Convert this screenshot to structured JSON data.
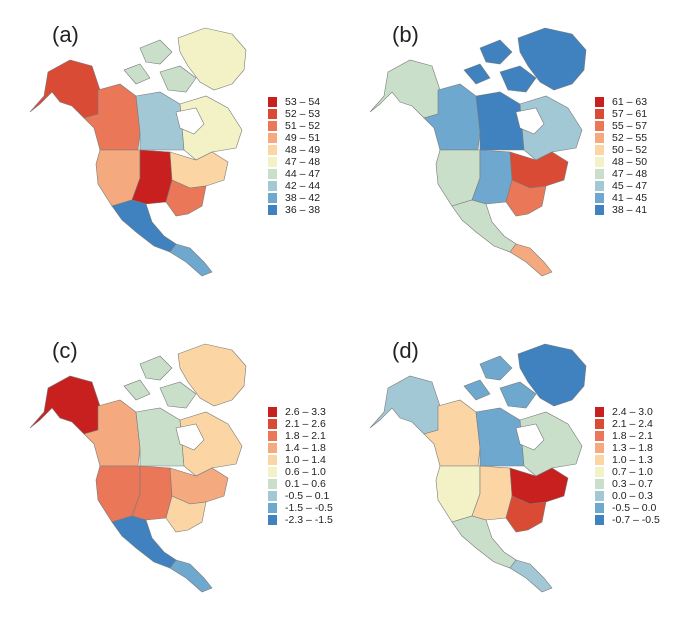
{
  "panels": [
    {
      "label": "(a)",
      "legend": [
        {
          "range": "53 – 54",
          "color": "#c8201e"
        },
        {
          "range": "52 – 53",
          "color": "#da4b35"
        },
        {
          "range": "51 – 52",
          "color": "#e97758"
        },
        {
          "range": "49 – 51",
          "color": "#f4a97e"
        },
        {
          "range": "48 – 49",
          "color": "#fbd6a4"
        },
        {
          "range": "47 – 48",
          "color": "#f2f2c6"
        },
        {
          "range": "44 – 47",
          "color": "#c9dfc9"
        },
        {
          "range": "42 – 44",
          "color": "#a2c8d6"
        },
        {
          "range": "38 – 42",
          "color": "#6fa8cf"
        },
        {
          "range": "36 – 38",
          "color": "#3f82bf"
        }
      ]
    },
    {
      "label": "(b)",
      "legend": [
        {
          "range": "61 – 63",
          "color": "#c8201e"
        },
        {
          "range": "57 – 61",
          "color": "#da4b35"
        },
        {
          "range": "55 – 57",
          "color": "#e97758"
        },
        {
          "range": "52 – 55",
          "color": "#f4a97e"
        },
        {
          "range": "50 – 52",
          "color": "#fbd6a4"
        },
        {
          "range": "48 – 50",
          "color": "#f2f2c6"
        },
        {
          "range": "47 – 48",
          "color": "#c9dfc9"
        },
        {
          "range": "45 – 47",
          "color": "#a2c8d6"
        },
        {
          "range": "41 – 45",
          "color": "#6fa8cf"
        },
        {
          "range": "38 – 41",
          "color": "#3f82bf"
        }
      ]
    },
    {
      "label": "(c)",
      "legend": [
        {
          "range": "2.6 – 3.3",
          "color": "#c8201e"
        },
        {
          "range": "2.1 – 2.6",
          "color": "#da4b35"
        },
        {
          "range": "1.8 – 2.1",
          "color": "#e97758"
        },
        {
          "range": "1.4 – 1.8",
          "color": "#f4a97e"
        },
        {
          "range": "1.0 – 1.4",
          "color": "#fbd6a4"
        },
        {
          "range": "0.6 – 1.0",
          "color": "#f2f2c6"
        },
        {
          "range": "0.1 – 0.6",
          "color": "#c9dfc9"
        },
        {
          "range": "-0.5 – 0.1",
          "color": "#a2c8d6"
        },
        {
          "range": "-1.5 – -0.5",
          "color": "#6fa8cf"
        },
        {
          "range": "-2.3 – -1.5",
          "color": "#3f82bf"
        }
      ]
    },
    {
      "label": "(d)",
      "legend": [
        {
          "range": "2.4 – 3.0",
          "color": "#c8201e"
        },
        {
          "range": "2.1 – 2.4",
          "color": "#da4b35"
        },
        {
          "range": "1.8 – 2.1",
          "color": "#e97758"
        },
        {
          "range": "1.3 – 1.8",
          "color": "#f4a97e"
        },
        {
          "range": "1.0 – 1.3",
          "color": "#fbd6a4"
        },
        {
          "range": "0.7 – 1.0",
          "color": "#f2f2c6"
        },
        {
          "range": "0.3 – 0.7",
          "color": "#c9dfc9"
        },
        {
          "range": "0.0 – 0.3",
          "color": "#a2c8d6"
        },
        {
          "range": "-0.5 – 0.0",
          "color": "#6fa8cf"
        },
        {
          "range": "-0.7 – -0.5",
          "color": "#3f82bf"
        }
      ]
    }
  ],
  "map_colors": {
    "a": {
      "alaska": "#da4b35",
      "canada_w": "#e97758",
      "canada_c": "#a2c8d6",
      "canada_e": "#f2f2c6",
      "arctic": "#c9dfc9",
      "greenland": "#f2f2c6",
      "us_w": "#f4a97e",
      "us_plains": "#c8201e",
      "us_e": "#fbd6a4",
      "us_se": "#e97758",
      "mexico": "#3f82bf",
      "central": "#6fa8cf"
    },
    "b": {
      "alaska": "#c9dfc9",
      "canada_w": "#6fa8cf",
      "canada_c": "#3f82bf",
      "canada_e": "#a2c8d6",
      "arctic": "#3f82bf",
      "greenland": "#3f82bf",
      "us_w": "#c9dfc9",
      "us_plains": "#6fa8cf",
      "us_e": "#da4b35",
      "us_se": "#e97758",
      "mexico": "#c9dfc9",
      "central": "#f4a97e"
    },
    "c": {
      "alaska": "#c8201e",
      "canada_w": "#f4a97e",
      "canada_c": "#c9dfc9",
      "canada_e": "#fbd6a4",
      "arctic": "#c9dfc9",
      "greenland": "#fbd6a4",
      "us_w": "#e97758",
      "us_plains": "#e97758",
      "us_e": "#f4a97e",
      "us_se": "#fbd6a4",
      "mexico": "#3f82bf",
      "central": "#6fa8cf"
    },
    "d": {
      "alaska": "#a2c8d6",
      "canada_w": "#fbd6a4",
      "canada_c": "#6fa8cf",
      "canada_e": "#c9dfc9",
      "arctic": "#6fa8cf",
      "greenland": "#3f82bf",
      "us_w": "#f2f2c6",
      "us_plains": "#fbd6a4",
      "us_e": "#c8201e",
      "us_se": "#da4b35",
      "mexico": "#c9dfc9",
      "central": "#a2c8d6"
    }
  }
}
